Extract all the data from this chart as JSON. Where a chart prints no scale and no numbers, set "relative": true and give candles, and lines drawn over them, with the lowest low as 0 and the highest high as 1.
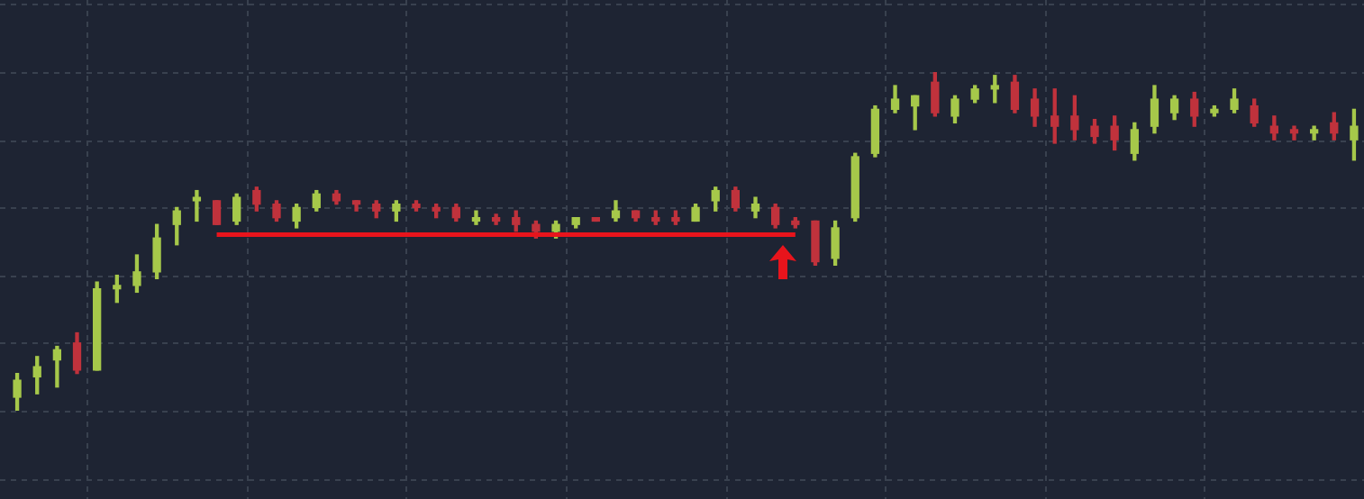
{
  "chart_data": {
    "type": "candlestick",
    "relative": true,
    "grid": true,
    "categories": [
      null,
      null,
      null,
      null,
      null,
      null,
      null,
      null,
      null,
      null,
      null,
      null,
      null,
      null,
      null,
      null,
      null,
      null,
      null,
      null,
      null,
      null,
      null,
      null,
      null,
      null,
      null,
      null,
      null,
      null,
      null,
      null,
      null,
      null,
      null,
      null,
      null,
      null,
      null,
      null,
      null,
      null,
      null,
      null,
      null,
      null,
      null,
      null,
      null,
      null,
      null,
      null,
      null,
      null,
      null,
      null,
      null,
      null,
      null,
      null,
      null,
      null,
      null,
      null,
      null,
      null,
      null,
      null
    ],
    "ohlc": [
      [
        0.04,
        0.11,
        0,
        0.09
      ],
      [
        0.1,
        0.16,
        0.05,
        0.13
      ],
      [
        0.15,
        0.19,
        0.07,
        0.18
      ],
      [
        0.2,
        0.23,
        0.11,
        0.12
      ],
      [
        0.12,
        0.38,
        0.12,
        0.36
      ],
      [
        0.36,
        0.4,
        0.32,
        0.37
      ],
      [
        0.37,
        0.46,
        0.35,
        0.41
      ],
      [
        0.41,
        0.55,
        0.39,
        0.51
      ],
      [
        0.55,
        0.6,
        0.49,
        0.59
      ],
      [
        0.62,
        0.65,
        0.56,
        0.63
      ],
      [
        0.62,
        0.62,
        0.55,
        0.55
      ],
      [
        0.56,
        0.64,
        0.55,
        0.63
      ],
      [
        0.65,
        0.66,
        0.59,
        0.61
      ],
      [
        0.61,
        0.62,
        0.56,
        0.57
      ],
      [
        0.56,
        0.61,
        0.54,
        0.6
      ],
      [
        0.6,
        0.65,
        0.59,
        0.64
      ],
      [
        0.64,
        0.65,
        0.61,
        0.62
      ],
      [
        0.62,
        0.62,
        0.59,
        0.61
      ],
      [
        0.61,
        0.62,
        0.57,
        0.59
      ],
      [
        0.59,
        0.62,
        0.56,
        0.61
      ],
      [
        0.61,
        0.62,
        0.59,
        0.6
      ],
      [
        0.6,
        0.61,
        0.57,
        0.59
      ],
      [
        0.6,
        0.61,
        0.56,
        0.57
      ],
      [
        0.56,
        0.59,
        0.55,
        0.57
      ],
      [
        0.57,
        0.58,
        0.55,
        0.56
      ],
      [
        0.57,
        0.59,
        0.53,
        0.55
      ],
      [
        0.55,
        0.56,
        0.51,
        0.53
      ],
      [
        0.53,
        0.56,
        0.51,
        0.55
      ],
      [
        0.55,
        0.57,
        0.54,
        0.57
      ],
      [
        0.57,
        0.57,
        0.56,
        0.56
      ],
      [
        0.57,
        0.62,
        0.56,
        0.59
      ],
      [
        0.59,
        0.59,
        0.56,
        0.57
      ],
      [
        0.57,
        0.59,
        0.55,
        0.56
      ],
      [
        0.57,
        0.59,
        0.55,
        0.56
      ],
      [
        0.56,
        0.61,
        0.56,
        0.6
      ],
      [
        0.62,
        0.66,
        0.59,
        0.65
      ],
      [
        0.65,
        0.66,
        0.59,
        0.6
      ],
      [
        0.59,
        0.63,
        0.57,
        0.61
      ],
      [
        0.6,
        0.61,
        0.54,
        0.55
      ],
      [
        0.56,
        0.57,
        0.54,
        0.55
      ],
      [
        0.56,
        0.56,
        0.43,
        0.44
      ],
      [
        0.45,
        0.56,
        0.43,
        0.54
      ],
      [
        0.57,
        0.76,
        0.56,
        0.75
      ],
      [
        0.76,
        0.9,
        0.75,
        0.89
      ],
      [
        0.89,
        0.96,
        0.88,
        0.92
      ],
      [
        0.9,
        0.93,
        0.83,
        0.93
      ],
      [
        0.97,
        1,
        0.87,
        0.88
      ],
      [
        0.87,
        0.93,
        0.85,
        0.92
      ],
      [
        0.92,
        0.96,
        0.91,
        0.95
      ],
      [
        0.95,
        0.99,
        0.91,
        0.96
      ],
      [
        0.97,
        0.99,
        0.88,
        0.89
      ],
      [
        0.92,
        0.95,
        0.84,
        0.87
      ],
      [
        0.87,
        0.95,
        0.79,
        0.84
      ],
      [
        0.87,
        0.93,
        0.8,
        0.83
      ],
      [
        0.84,
        0.86,
        0.79,
        0.81
      ],
      [
        0.84,
        0.87,
        0.77,
        0.8
      ],
      [
        0.76,
        0.85,
        0.74,
        0.83
      ],
      [
        0.84,
        0.96,
        0.82,
        0.92
      ],
      [
        0.88,
        0.93,
        0.86,
        0.92
      ],
      [
        0.92,
        0.94,
        0.84,
        0.87
      ],
      [
        0.88,
        0.9,
        0.87,
        0.89
      ],
      [
        0.89,
        0.95,
        0.88,
        0.92
      ],
      [
        0.9,
        0.92,
        0.84,
        0.85
      ],
      [
        0.84,
        0.87,
        0.8,
        0.82
      ],
      [
        0.83,
        0.84,
        0.8,
        0.82
      ],
      [
        0.82,
        0.84,
        0.8,
        0.83
      ],
      [
        0.85,
        0.88,
        0.8,
        0.82
      ],
      [
        0.8,
        0.89,
        0.74,
        0.84
      ]
    ],
    "colors": [
      "#a6c84a",
      "#a6c84a",
      "#a6c84a",
      "#c0323c",
      "#a6c84a",
      "#a6c84a",
      "#a6c84a",
      "#a6c84a",
      "#a6c84a",
      "#a6c84a",
      "#c0323c",
      "#a6c84a",
      "#c0323c",
      "#c0323c",
      "#a6c84a",
      "#a6c84a",
      "#c0323c",
      "#c0323c",
      "#c0323c",
      "#a6c84a",
      "#c0323c",
      "#c0323c",
      "#c0323c",
      "#a6c84a",
      "#c0323c",
      "#c0323c",
      "#c0323c",
      "#a6c84a",
      "#a6c84a",
      "#c0323c",
      "#a6c84a",
      "#c0323c",
      "#c0323c",
      "#c0323c",
      "#a6c84a",
      "#a6c84a",
      "#c0323c",
      "#a6c84a",
      "#c0323c",
      "#c0323c",
      "#c0323c",
      "#a6c84a",
      "#a6c84a",
      "#a6c84a",
      "#a6c84a",
      "#a6c84a",
      "#c0323c",
      "#a6c84a",
      "#a6c84a",
      "#a6c84a",
      "#c0323c",
      "#c0323c",
      "#c0323c",
      "#c0323c",
      "#c0323c",
      "#c0323c",
      "#a6c84a",
      "#a6c84a",
      "#a6c84a",
      "#c0323c",
      "#a6c84a",
      "#a6c84a",
      "#c0323c",
      "#c0323c",
      "#c0323c",
      "#a6c84a",
      "#c0323c",
      "#a6c84a"
    ],
    "series": [
      {
        "type": "line",
        "color": "#e8141c",
        "values": [
          null,
          null,
          null,
          null,
          null,
          null,
          null,
          null,
          null,
          null,
          0.52,
          0.52,
          0.52,
          0.52,
          0.52,
          0.52,
          0.52,
          0.52,
          0.52,
          0.52,
          0.52,
          0.52,
          0.52,
          0.52,
          0.52,
          0.52,
          0.52,
          0.52,
          0.52,
          0.52,
          0.52,
          0.52,
          0.52,
          0.52,
          0.52,
          0.52,
          0.52,
          0.52,
          0.52,
          0.52,
          null,
          null,
          null,
          null,
          null,
          null,
          null,
          null,
          null,
          null,
          null,
          null,
          null,
          null,
          null,
          null,
          null,
          null,
          null,
          null,
          null,
          null,
          null,
          null,
          null,
          null,
          null,
          null
        ]
      }
    ]
  }
}
